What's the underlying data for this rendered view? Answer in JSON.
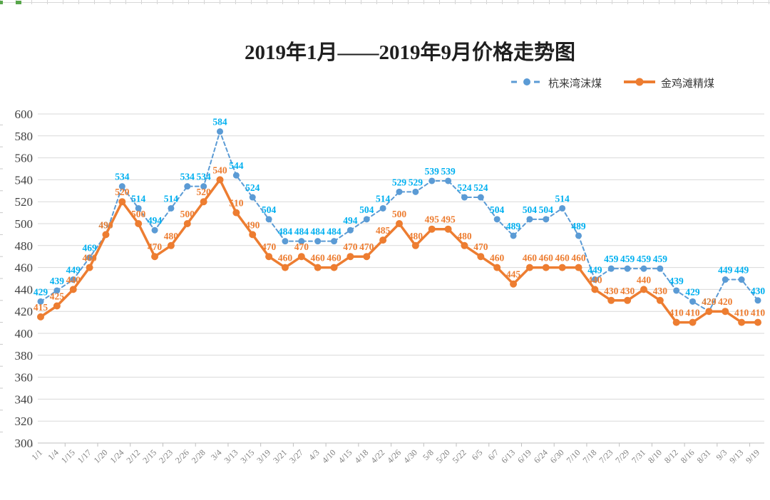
{
  "page": {
    "background": "#ffffff"
  },
  "chart_data": {
    "type": "line",
    "title": "2019年1月——2019年9月价格走势图",
    "categories": [
      "1/1",
      "1/4",
      "1/15",
      "1/17",
      "1/20",
      "1/24",
      "2/12",
      "2/15",
      "2/23",
      "2/26",
      "2/28",
      "3/4",
      "3/13",
      "3/15",
      "3/19",
      "3/21",
      "3/27",
      "4/3",
      "4/10",
      "4/15",
      "4/18",
      "4/22",
      "4/26",
      "4/30",
      "5/8",
      "5/20",
      "5/22",
      "6/5",
      "6/7",
      "6/13",
      "6/19",
      "6/24",
      "6/30",
      "7/10",
      "7/18",
      "7/23",
      "7/29",
      "7/31",
      "8/10",
      "8/12",
      "8/16",
      "8/31",
      "9/3",
      "9/13",
      "9/19"
    ],
    "series": [
      {
        "name": "杭来湾沫煤",
        "color": "#5B9BD5",
        "label_color": "#00B0F0",
        "line_style": "dashed",
        "values": [
          429,
          439,
          449,
          469,
          490,
          534,
          514,
          494,
          514,
          534,
          534,
          584,
          544,
          524,
          504,
          484,
          484,
          484,
          484,
          494,
          504,
          514,
          529,
          529,
          539,
          539,
          524,
          524,
          504,
          489,
          504,
          504,
          514,
          489,
          449,
          459,
          459,
          459,
          459,
          439,
          429,
          420,
          449,
          449,
          430
        ]
      },
      {
        "name": "金鸡滩精煤",
        "color": "#ED7D31",
        "label_color": "#ED7D31",
        "line_style": "solid",
        "values": [
          415,
          425,
          440,
          460,
          490,
          520,
          500,
          470,
          480,
          500,
          520,
          540,
          510,
          490,
          470,
          460,
          470,
          460,
          460,
          470,
          470,
          485,
          500,
          480,
          495,
          495,
          480,
          470,
          460,
          445,
          460,
          460,
          460,
          460,
          440,
          430,
          430,
          440,
          430,
          410,
          410,
          420,
          420,
          410,
          410
        ]
      }
    ],
    "y_axis": {
      "min": 300,
      "max": 600,
      "step": 20,
      "ticks": [
        600,
        580,
        560,
        540,
        520,
        500,
        480,
        460,
        440,
        420,
        400,
        380,
        360,
        340,
        320,
        300
      ]
    },
    "grid": true,
    "grid_color": "#d9d9d9",
    "axis_color": "#bfbfbf",
    "legend_position": "top-right"
  }
}
